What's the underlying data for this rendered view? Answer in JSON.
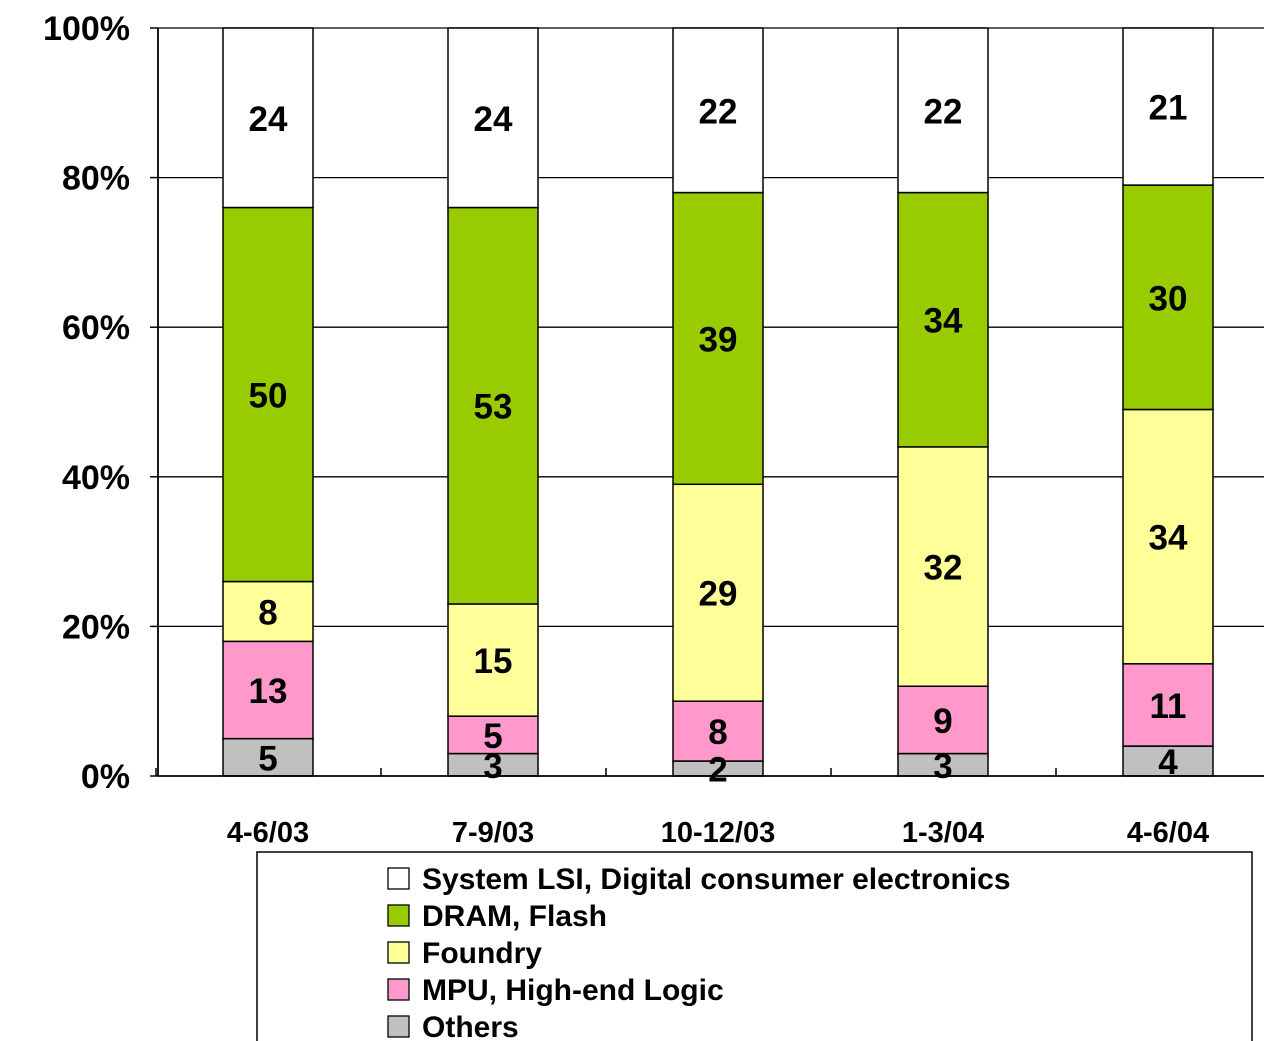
{
  "chart_data": {
    "type": "bar",
    "stacked": true,
    "percent": true,
    "categories": [
      "4-6/03",
      "7-9/03",
      "10-12/03",
      "1-3/04",
      "4-6/04"
    ],
    "series": [
      {
        "name": "Others",
        "color": "#C0C0C0",
        "values": [
          5,
          3,
          2,
          3,
          4
        ]
      },
      {
        "name": "MPU, High-end Logic",
        "color": "#FF99CC",
        "values": [
          13,
          5,
          8,
          9,
          11
        ]
      },
      {
        "name": "Foundry",
        "color": "#FFFF99",
        "values": [
          8,
          15,
          29,
          32,
          34
        ]
      },
      {
        "name": "DRAM, Flash",
        "color": "#99CC00",
        "values": [
          50,
          53,
          39,
          34,
          30
        ]
      },
      {
        "name": "System LSI, Digital consumer electronics",
        "color": "#FFFFFF",
        "values": [
          24,
          24,
          22,
          22,
          21
        ]
      }
    ],
    "yticks": [
      "0%",
      "20%",
      "40%",
      "60%",
      "80%",
      "100%"
    ],
    "ylim": [
      0,
      100
    ],
    "grid": true,
    "legend": {
      "position": "bottom",
      "order": [
        "System LSI, Digital consumer electronics",
        "DRAM, Flash",
        "Foundry",
        "MPU, High-end Logic",
        "Others"
      ]
    },
    "title": "",
    "xlabel": "",
    "ylabel": ""
  }
}
